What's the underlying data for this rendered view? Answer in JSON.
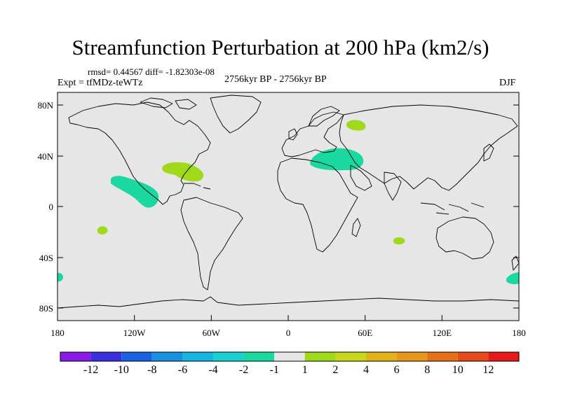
{
  "title": "Streamfunction Perturbation at 200 hPa (km2/s)",
  "stats_line": "rmsd= 0.44567  diff= -1.82303e-08",
  "left_string": "Expt = tfMDz-teWTz",
  "center_string": "2756kyr BP - 2756kyr BP",
  "right_string": "DJF",
  "y_ticks": [
    "80N",
    "40N",
    "0",
    "40S",
    "80S"
  ],
  "x_ticks": [
    "180",
    "120W",
    "60W",
    "0",
    "60E",
    "120E",
    "180"
  ],
  "colorbar": {
    "labels": [
      "-12",
      "-10",
      "-8",
      "-6",
      "-4",
      "-2",
      "-1",
      "1",
      "2",
      "4",
      "6",
      "8",
      "10",
      "12"
    ],
    "colors": [
      "#8a1ae6",
      "#3a30e0",
      "#1a62e0",
      "#1a90e0",
      "#1ab4e0",
      "#1ad0d0",
      "#1ad8a0",
      "#e6e6e6",
      "#a0d81a",
      "#c8d81a",
      "#e0b41a",
      "#e6961a",
      "#e6701a",
      "#e64a1a",
      "#e61a1a"
    ]
  },
  "map": {
    "ocean_color": "#e6e6e6",
    "anomalies": [
      {
        "name": "north-america-anomaly",
        "color": "#a0d81a"
      },
      {
        "name": "mediterranean-anomaly",
        "color": "#1ad8a0"
      },
      {
        "name": "russia-anomaly",
        "color": "#a0d81a"
      },
      {
        "name": "east-pacific-anomaly",
        "color": "#1ad8a0"
      },
      {
        "name": "south-pacific-anomaly",
        "color": "#a0d81a"
      },
      {
        "name": "indian-ocean-anomaly",
        "color": "#a0d81a"
      },
      {
        "name": "southern-ocean-west-anomaly",
        "color": "#1ad8a0"
      },
      {
        "name": "southern-ocean-east-anomaly",
        "color": "#1ad8a0"
      }
    ]
  }
}
